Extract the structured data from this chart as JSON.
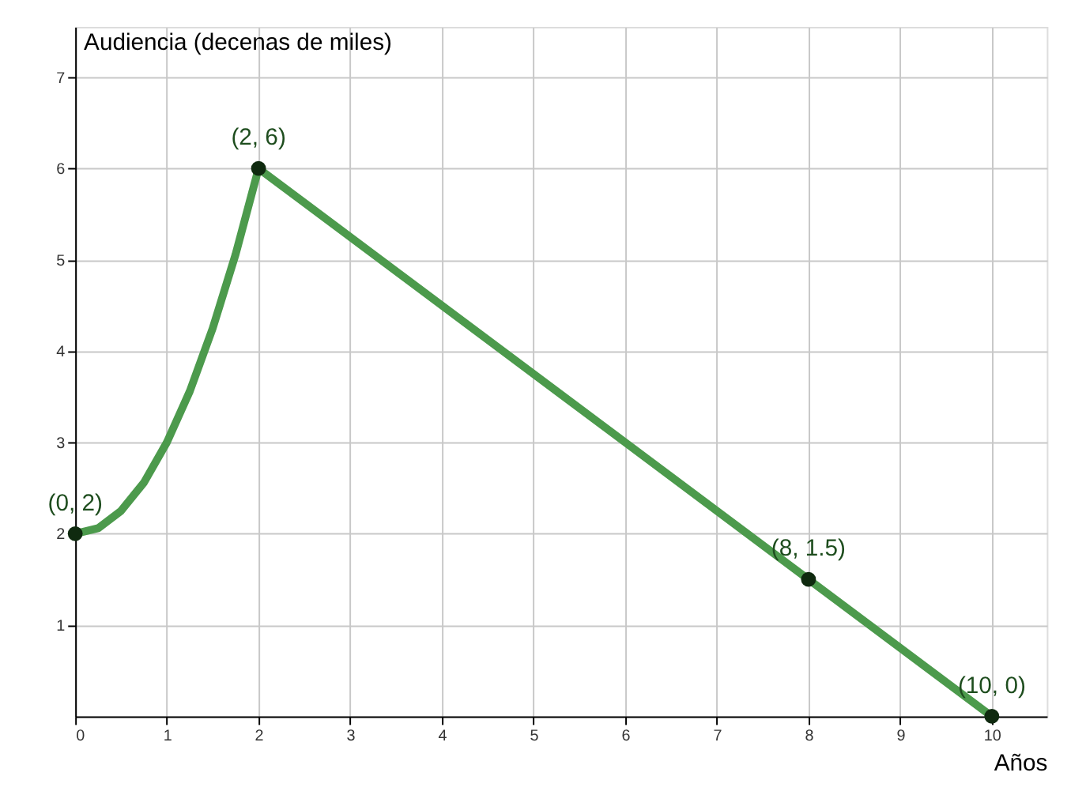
{
  "chart_data": {
    "type": "line",
    "xlabel": "Años",
    "ylabel": "Audiencia (decenas de miles)",
    "xlim": [
      0,
      10.6
    ],
    "ylim": [
      0,
      7.55
    ],
    "xticks": [
      0,
      1,
      2,
      3,
      4,
      5,
      6,
      7,
      8,
      9,
      10
    ],
    "yticks": [
      1,
      2,
      3,
      4,
      5,
      6,
      7
    ],
    "grid": true,
    "series": [
      {
        "color": "#4c9a4c",
        "x": [
          0,
          0.25,
          0.5,
          0.75,
          1,
          1.25,
          1.5,
          1.75,
          2,
          10
        ],
        "values": [
          2,
          2.06,
          2.25,
          2.56,
          3,
          3.56,
          4.25,
          5.06,
          6,
          0
        ],
        "marker": "none"
      },
      {
        "type": "scatter",
        "color": "#0f2a0f",
        "x": [
          0,
          2,
          8,
          10
        ],
        "values": [
          2,
          6,
          1.5,
          0
        ],
        "marker": "circle"
      }
    ],
    "annotations": [
      {
        "text": "(0, 2)",
        "x": 0,
        "y": 2
      },
      {
        "text": "(2, 6)",
        "x": 2,
        "y": 6
      },
      {
        "text": "(8, 1.5)",
        "x": 8,
        "y": 1.5
      },
      {
        "text": "(10, 0)",
        "x": 10,
        "y": 0
      }
    ]
  }
}
